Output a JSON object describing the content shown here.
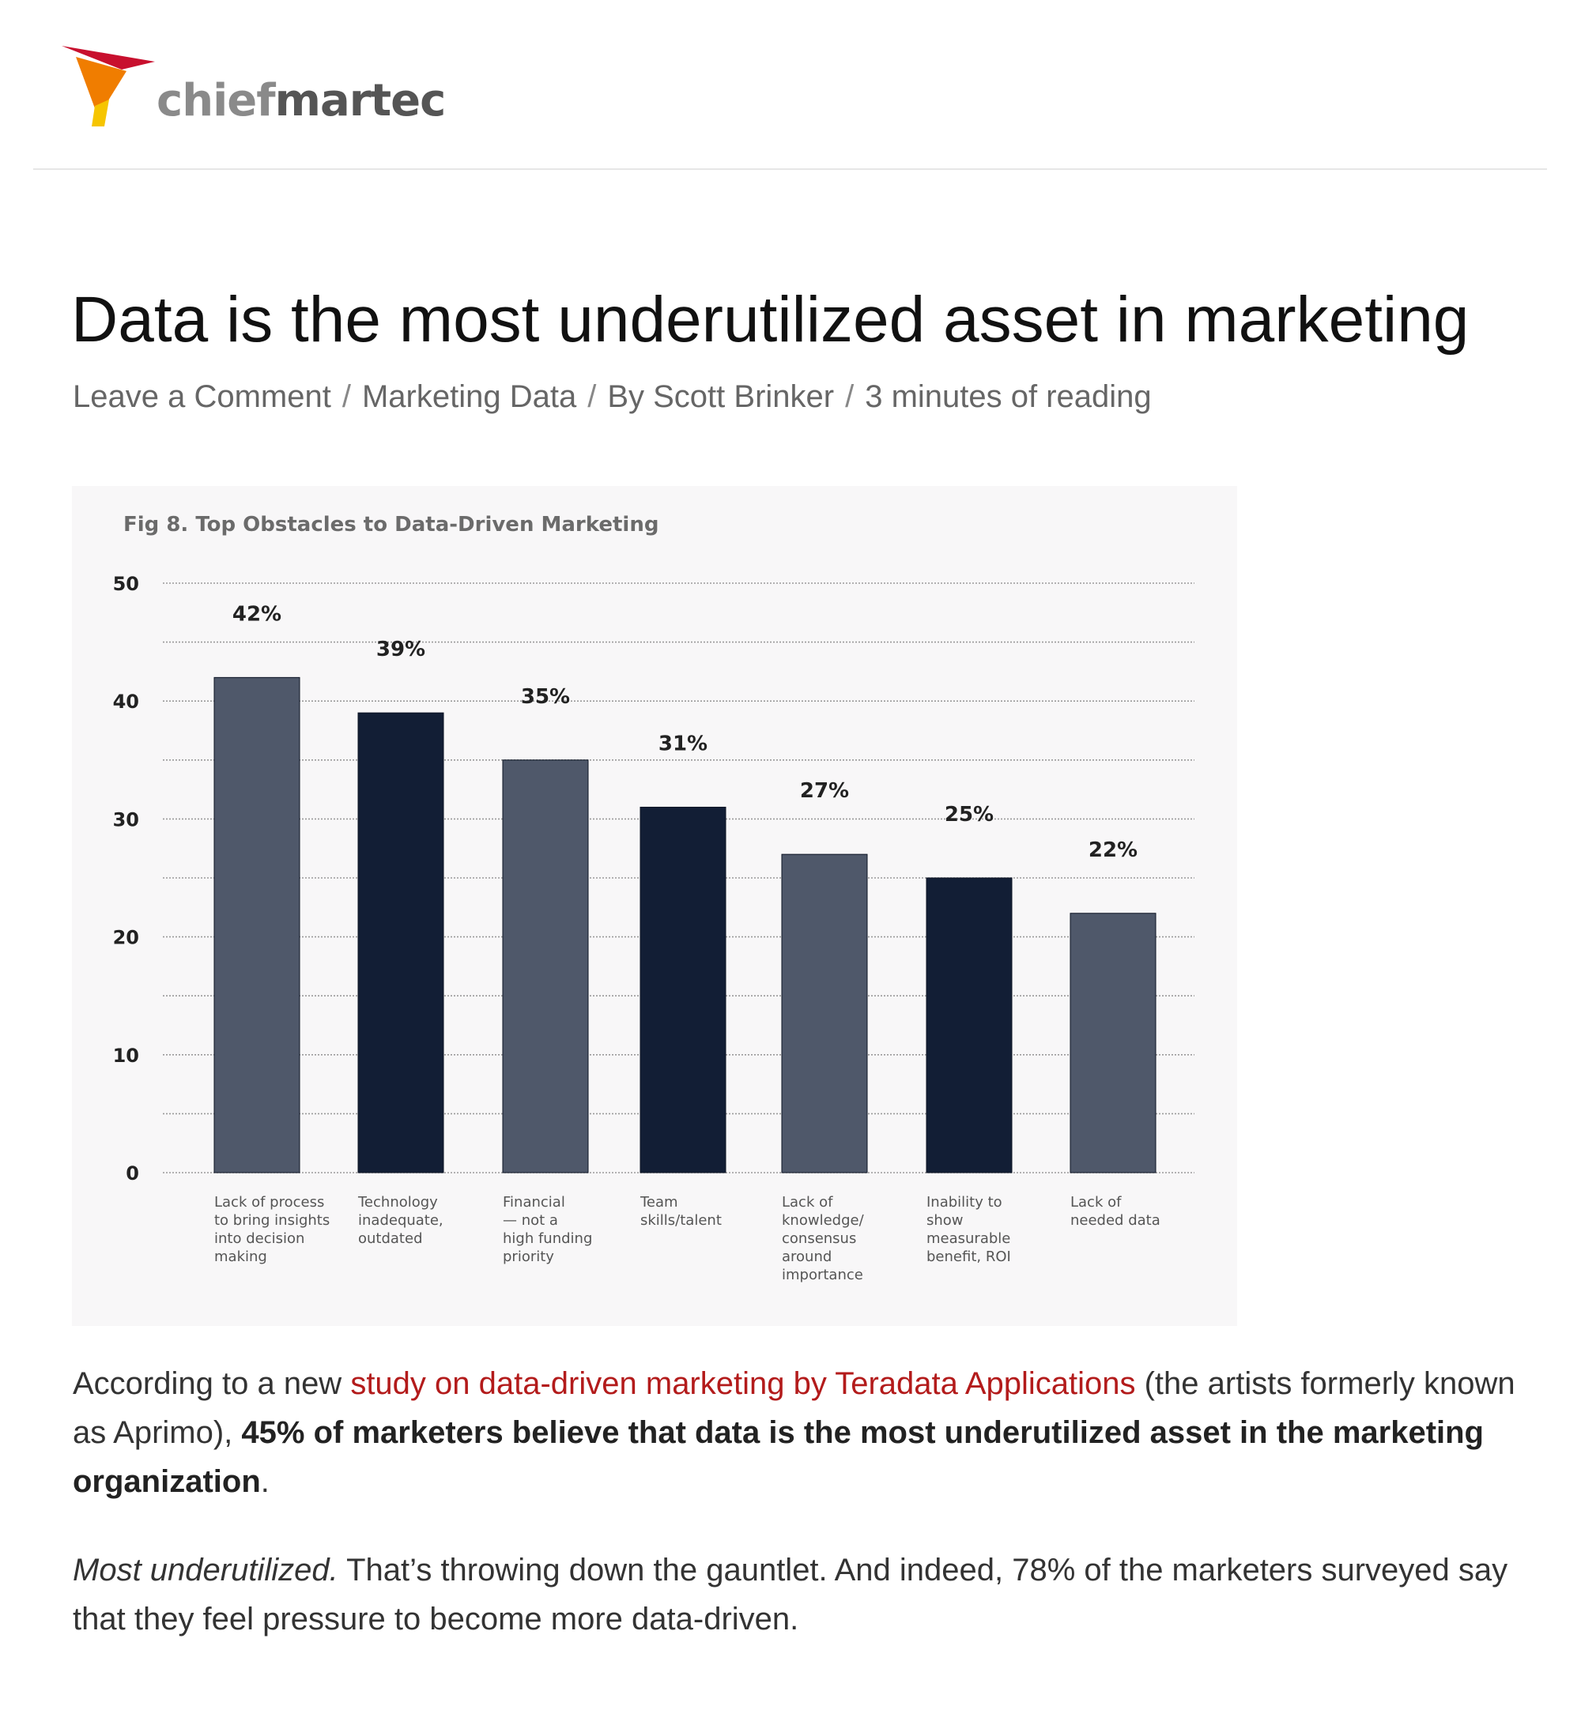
{
  "site": {
    "logo_chief": "chief",
    "logo_martec": "martec",
    "brand_colors": [
      "#c8102e",
      "#f07d00",
      "#f6c500"
    ]
  },
  "post": {
    "title": "Data is the most underutilized asset in marketing",
    "meta": {
      "comments": "Leave a Comment",
      "category": "Marketing Data",
      "author": "By Scott Brinker",
      "reading_time": "3 minutes of reading",
      "separator": "/"
    }
  },
  "chart_data": {
    "type": "bar",
    "title": "Fig 8. Top Obstacles to Data-Driven Marketing",
    "xlabel": "",
    "ylabel": "",
    "ylim": [
      0,
      50
    ],
    "yticks": [
      0,
      10,
      20,
      30,
      40,
      50
    ],
    "grid": true,
    "categories": [
      [
        "Lack of process",
        "to bring insights",
        "into decision",
        "making"
      ],
      [
        "Technology",
        "inadequate,",
        "outdated"
      ],
      [
        "Financial",
        "— not a",
        "high funding",
        "priority"
      ],
      [
        "Team",
        "skills/talent"
      ],
      [
        "Lack of",
        "knowledge/",
        "consensus",
        "around",
        "importance"
      ],
      [
        "Inability to",
        "show",
        "measurable",
        "benefit, ROI"
      ],
      [
        "Lack of",
        "needed data"
      ]
    ],
    "values": [
      42,
      39,
      35,
      31,
      27,
      25,
      22
    ],
    "value_labels": [
      "42%",
      "39%",
      "35%",
      "31%",
      "27%",
      "25%",
      "22%"
    ],
    "bar_colors": [
      "#4f586a",
      "#121e35",
      "#4f586a",
      "#121e35",
      "#4f586a",
      "#121e35",
      "#4f586a"
    ]
  },
  "article": {
    "p1_intro": "According to a new ",
    "p1_link": "study on data-driven marketing by Teradata Applications",
    "p1_mid": " (the artists formerly known as Aprimo), ",
    "p1_bold": "45% of marketers believe that data is the most underutilized asset in the marketing organization",
    "p1_end": ".",
    "p2_italic": "Most underutilized.",
    "p2_rest": " That’s throwing down the gauntlet. And indeed, 78% of the marketers surveyed say that they feel pressure to become more data-driven."
  }
}
